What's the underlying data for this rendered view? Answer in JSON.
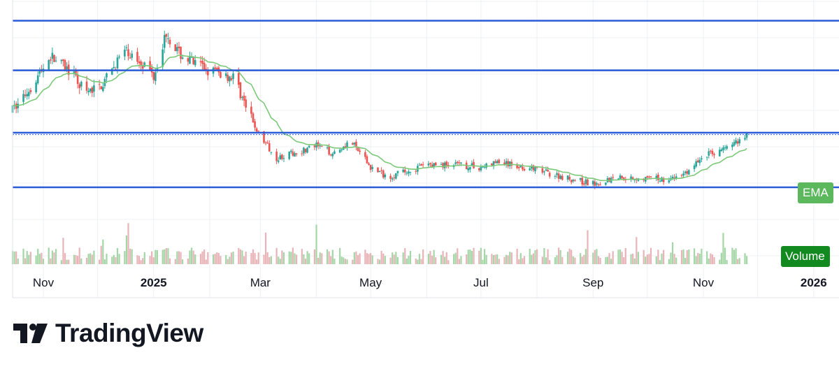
{
  "brand": {
    "name": "TradingView"
  },
  "indicators": {
    "ema_label": "EMA",
    "volume_label": "Volume"
  },
  "colors": {
    "up": "#26a69a",
    "down": "#ef5350",
    "ema": "#7dc97a",
    "level_line": "#2a5bd7",
    "volume_up": "#a5d6a7",
    "volume_down": "#e8b4b8",
    "grid": "#eef0f3",
    "ema_tag": "#5cb85c",
    "volume_tag": "#138a20"
  },
  "chart_data": {
    "type": "candlestick",
    "x_axis": {
      "start": "2024-10-15",
      "end": "2026-01-15",
      "ticks": [
        {
          "label": "Nov",
          "date": "2024-11-01",
          "major": false
        },
        {
          "label": "2025",
          "date": "2025-01-01",
          "major": true
        },
        {
          "label": "Mar",
          "date": "2025-03-01",
          "major": false
        },
        {
          "label": "May",
          "date": "2025-05-01",
          "major": false
        },
        {
          "label": "Jul",
          "date": "2025-07-01",
          "major": false
        },
        {
          "label": "Sep",
          "date": "2025-09-01",
          "major": false
        },
        {
          "label": "Nov",
          "date": "2025-11-01",
          "major": false
        },
        {
          "label": "2026",
          "date": "2026-01-01",
          "major": true
        }
      ]
    },
    "y_axis": {
      "min": 0,
      "max": 100,
      "visible_labels": false
    },
    "horizontal_levels": [
      93,
      72,
      45.6,
      22.5
    ],
    "current_price": 44.8,
    "price_path": [
      [
        "2024-10-15",
        55
      ],
      [
        "2024-10-25",
        65
      ],
      [
        "2024-11-05",
        78
      ],
      [
        "2024-11-15",
        72
      ],
      [
        "2024-11-25",
        62
      ],
      [
        "2024-12-05",
        67
      ],
      [
        "2024-12-15",
        80
      ],
      [
        "2024-12-25",
        76
      ],
      [
        "2025-01-01",
        70
      ],
      [
        "2025-01-08",
        88
      ],
      [
        "2025-01-15",
        79
      ],
      [
        "2025-01-25",
        74
      ],
      [
        "2025-02-05",
        71
      ],
      [
        "2025-02-15",
        69
      ],
      [
        "2025-02-22",
        54
      ],
      [
        "2025-03-01",
        44
      ],
      [
        "2025-03-10",
        35
      ],
      [
        "2025-03-20",
        37
      ],
      [
        "2025-04-01",
        40
      ],
      [
        "2025-04-10",
        37
      ],
      [
        "2025-04-20",
        42
      ],
      [
        "2025-05-01",
        31
      ],
      [
        "2025-05-10",
        27
      ],
      [
        "2025-05-20",
        29
      ],
      [
        "2025-06-01",
        32
      ],
      [
        "2025-06-15",
        32
      ],
      [
        "2025-07-01",
        31
      ],
      [
        "2025-07-10",
        33
      ],
      [
        "2025-07-25",
        31
      ],
      [
        "2025-08-10",
        28
      ],
      [
        "2025-08-25",
        25
      ],
      [
        "2025-09-01",
        24
      ],
      [
        "2025-09-15",
        27
      ],
      [
        "2025-10-01",
        26
      ],
      [
        "2025-10-15",
        26
      ],
      [
        "2025-10-25",
        30
      ],
      [
        "2025-11-01",
        36
      ],
      [
        "2025-11-10",
        38
      ],
      [
        "2025-11-20",
        42
      ],
      [
        "2025-11-25",
        45
      ]
    ]
  }
}
